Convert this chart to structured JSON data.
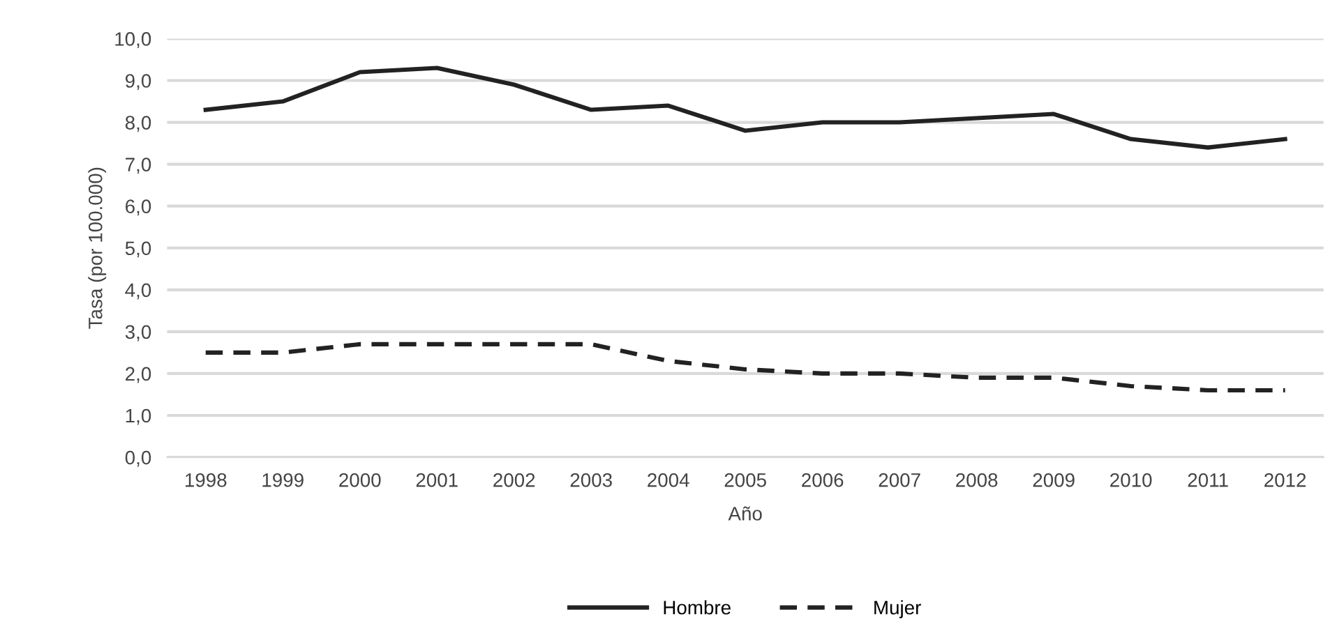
{
  "chart_data": {
    "type": "line",
    "xlabel": "Año",
    "ylabel": "Tasa (por 100.000)",
    "categories": [
      "1998",
      "1999",
      "2000",
      "2001",
      "2002",
      "2003",
      "2004",
      "2005",
      "2006",
      "2007",
      "2008",
      "2009",
      "2010",
      "2011",
      "2012"
    ],
    "series": [
      {
        "name": "Hombre",
        "color": "#222222",
        "line_style": "solid",
        "values": [
          8.3,
          8.5,
          9.2,
          9.3,
          8.9,
          8.3,
          8.4,
          7.8,
          8.0,
          8.0,
          8.1,
          8.2,
          7.6,
          7.4,
          7.6
        ]
      },
      {
        "name": "Mujer",
        "color": "#222222",
        "line_style": "dashed",
        "values": [
          2.5,
          2.5,
          2.7,
          2.7,
          2.7,
          2.7,
          2.3,
          2.1,
          2.0,
          2.0,
          1.9,
          1.9,
          1.7,
          1.6,
          1.6
        ]
      }
    ],
    "ylim": [
      0,
      10
    ],
    "yticks": [
      {
        "value": 0,
        "label": "0,0"
      },
      {
        "value": 1,
        "label": "1,0"
      },
      {
        "value": 2,
        "label": "2,0"
      },
      {
        "value": 3,
        "label": "3,0"
      },
      {
        "value": 4,
        "label": "4,0"
      },
      {
        "value": 5,
        "label": "5,0"
      },
      {
        "value": 6,
        "label": "6,0"
      },
      {
        "value": 7,
        "label": "7,0"
      },
      {
        "value": 8,
        "label": "8,0"
      },
      {
        "value": 9,
        "label": "9,0"
      },
      {
        "value": 10,
        "label": "10,0"
      }
    ],
    "grid": "y",
    "legend": "bottom"
  }
}
